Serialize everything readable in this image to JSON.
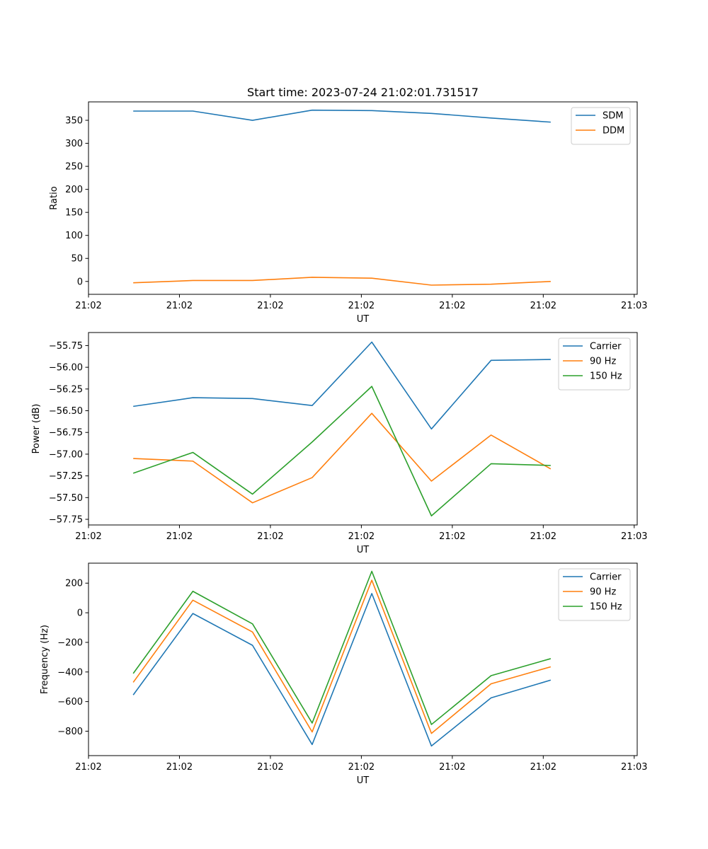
{
  "title": "Start time: 2023-07-24 21:02:01.731517",
  "chart_data": [
    {
      "type": "line",
      "xlabel": "UT",
      "ylabel": "Ratio",
      "x": [
        0,
        1,
        2,
        3,
        4,
        5,
        6,
        7
      ],
      "xlim": [
        -0.75,
        8.45
      ],
      "xticks": [
        -0.75,
        0.775,
        2.3,
        3.825,
        5.35,
        6.875,
        8.4
      ],
      "xtick_labels": [
        "21:02",
        "21:02",
        "21:02",
        "21:02",
        "21:02",
        "21:02",
        "21:03"
      ],
      "ylim": [
        -28,
        390
      ],
      "yticks": [
        0,
        50,
        100,
        150,
        200,
        250,
        300,
        350
      ],
      "ytick_labels": [
        "0",
        "50",
        "100",
        "150",
        "200",
        "250",
        "300",
        "350"
      ],
      "legend_position": "top-right",
      "series": [
        {
          "name": "SDM",
          "color": "#1f77b4",
          "values": [
            370,
            370,
            350,
            372,
            371,
            365,
            355,
            346
          ]
        },
        {
          "name": "DDM",
          "color": "#ff7f0e",
          "values": [
            -3,
            2,
            2,
            9,
            7,
            -8,
            -6,
            0
          ]
        }
      ]
    },
    {
      "type": "line",
      "xlabel": "UT",
      "ylabel": "Power (dB)",
      "x": [
        0,
        1,
        2,
        3,
        4,
        5,
        6,
        7
      ],
      "xlim": [
        -0.75,
        8.45
      ],
      "xticks": [
        -0.75,
        0.775,
        2.3,
        3.825,
        5.35,
        6.875,
        8.4
      ],
      "xtick_labels": [
        "21:02",
        "21:02",
        "21:02",
        "21:02",
        "21:02",
        "21:02",
        "21:03"
      ],
      "ylim": [
        -57.815,
        -55.6
      ],
      "yticks": [
        -55.75,
        -56.0,
        -56.25,
        -56.5,
        -56.75,
        -57.0,
        -57.25,
        -57.5,
        -57.75
      ],
      "ytick_labels": [
        "−55.75",
        "−56.00",
        "−56.25",
        "−56.50",
        "−56.75",
        "−57.00",
        "−57.25",
        "−57.50",
        "−57.75"
      ],
      "legend_position": "top-right",
      "series": [
        {
          "name": "Carrier",
          "color": "#1f77b4",
          "values": [
            -56.45,
            -56.35,
            -56.36,
            -56.44,
            -55.71,
            -56.71,
            -55.92,
            -55.91
          ]
        },
        {
          "name": "90 Hz",
          "color": "#ff7f0e",
          "values": [
            -57.05,
            -57.08,
            -57.56,
            -57.27,
            -56.53,
            -57.31,
            -56.78,
            -57.17
          ]
        },
        {
          "name": "150 Hz",
          "color": "#2ca02c",
          "values": [
            -57.22,
            -56.98,
            -57.46,
            -56.86,
            -56.22,
            -57.71,
            -57.11,
            -57.13
          ]
        }
      ]
    },
    {
      "type": "line",
      "xlabel": "UT",
      "ylabel": "Frequency (Hz)",
      "x": [
        0,
        1,
        2,
        3,
        4,
        5,
        6,
        7
      ],
      "xlim": [
        -0.75,
        8.45
      ],
      "xticks": [
        -0.75,
        0.775,
        2.3,
        3.825,
        5.35,
        6.875,
        8.4
      ],
      "xtick_labels": [
        "21:02",
        "21:02",
        "21:02",
        "21:02",
        "21:02",
        "21:02",
        "21:03"
      ],
      "ylim": [
        -965,
        335
      ],
      "yticks": [
        200,
        0,
        -200,
        -400,
        -600,
        -800
      ],
      "ytick_labels": [
        "200",
        "0",
        "−200",
        "−400",
        "−600",
        "−800"
      ],
      "legend_position": "top-right",
      "series": [
        {
          "name": "Carrier",
          "color": "#1f77b4",
          "values": [
            -555,
            -5,
            -220,
            -890,
            130,
            -900,
            -575,
            -455
          ]
        },
        {
          "name": "90 Hz",
          "color": "#ff7f0e",
          "values": [
            -470,
            85,
            -130,
            -805,
            220,
            -815,
            -480,
            -365
          ]
        },
        {
          "name": "150 Hz",
          "color": "#2ca02c",
          "values": [
            -410,
            145,
            -75,
            -745,
            280,
            -755,
            -425,
            -310
          ]
        }
      ]
    }
  ]
}
